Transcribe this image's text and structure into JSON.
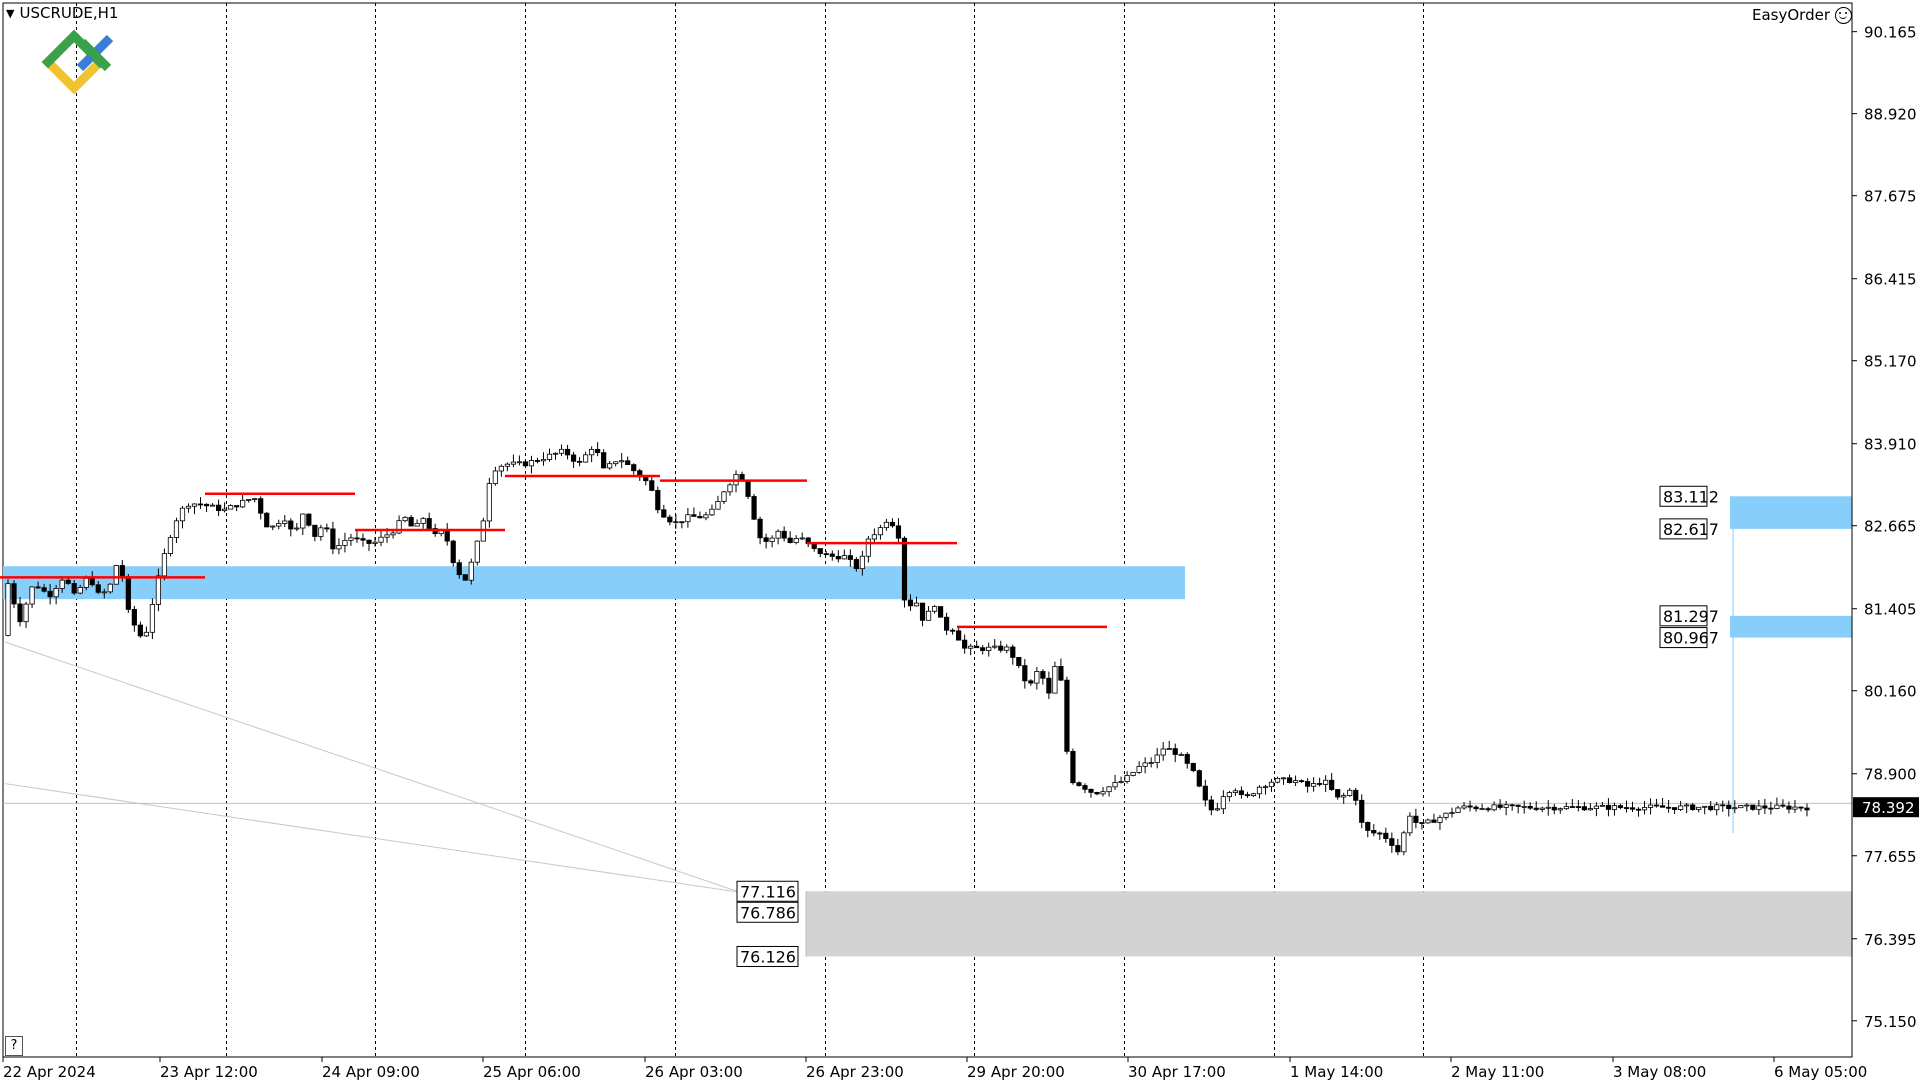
{
  "header": {
    "symbol_label": "USCRUDE,H1",
    "expert_label": "EasyOrder"
  },
  "help_label": "?",
  "colors": {
    "zone_blue": "#87cefa",
    "zone_gray": "#d3d3d3",
    "level_red": "#ff0000",
    "candle_bull": "#ffffff",
    "candle_bear": "#000000"
  },
  "chart_data": {
    "type": "candlestick",
    "symbol": "USCRUDE",
    "timeframe": "H1",
    "ylim": [
      74.6,
      90.6
    ],
    "y_ticks": [
      "90.165",
      "88.920",
      "87.675",
      "86.415",
      "85.170",
      "83.910",
      "82.665",
      "81.405",
      "80.160",
      "78.900",
      "77.655",
      "76.395",
      "75.150"
    ],
    "current_price": "78.392",
    "x_ticks": [
      "22 Apr 2024",
      "23 Apr 12:00",
      "24 Apr 09:00",
      "25 Apr 06:00",
      "26 Apr 03:00",
      "26 Apr 23:00",
      "29 Apr 20:00",
      "30 Apr 17:00",
      "1 May 14:00",
      "2 May 11:00",
      "3 May 08:00",
      "6 May 05:00"
    ],
    "session_separators": 10,
    "candle_count": 300,
    "ohlc_path": [
      [
        0,
        81.0
      ],
      [
        8,
        81.7
      ],
      [
        15,
        81.8
      ],
      [
        25,
        81.2
      ],
      [
        40,
        81.8
      ],
      [
        55,
        81.6
      ],
      [
        70,
        81.9
      ],
      [
        80,
        81.6
      ],
      [
        95,
        81.9
      ],
      [
        105,
        81.6
      ],
      [
        115,
        81.7
      ],
      [
        125,
        82.2
      ],
      [
        135,
        81.3
      ],
      [
        150,
        80.9
      ],
      [
        160,
        81.6
      ],
      [
        170,
        82.2
      ],
      [
        180,
        82.7
      ],
      [
        192,
        83.0
      ],
      [
        205,
        83.0
      ],
      [
        230,
        82.9
      ],
      [
        260,
        83.1
      ],
      [
        275,
        82.6
      ],
      [
        290,
        82.8
      ],
      [
        300,
        82.5
      ],
      [
        310,
        82.9
      ],
      [
        320,
        82.5
      ],
      [
        330,
        82.7
      ],
      [
        340,
        82.3
      ],
      [
        355,
        82.5
      ],
      [
        370,
        82.4
      ],
      [
        380,
        82.4
      ],
      [
        390,
        82.5
      ],
      [
        400,
        82.6
      ],
      [
        410,
        82.8
      ],
      [
        420,
        82.6
      ],
      [
        430,
        82.8
      ],
      [
        440,
        82.5
      ],
      [
        450,
        82.6
      ],
      [
        460,
        82.1
      ],
      [
        470,
        81.8
      ],
      [
        480,
        82.2
      ],
      [
        490,
        82.8
      ],
      [
        497,
        83.5
      ],
      [
        510,
        83.6
      ],
      [
        530,
        83.6
      ],
      [
        550,
        83.7
      ],
      [
        570,
        83.8
      ],
      [
        585,
        83.6
      ],
      [
        600,
        83.9
      ],
      [
        610,
        83.5
      ],
      [
        625,
        83.7
      ],
      [
        640,
        83.5
      ],
      [
        655,
        83.3
      ],
      [
        665,
        82.9
      ],
      [
        680,
        82.7
      ],
      [
        695,
        82.8
      ],
      [
        710,
        82.8
      ],
      [
        720,
        82.9
      ],
      [
        730,
        83.2
      ],
      [
        745,
        83.5
      ],
      [
        755,
        83.1
      ],
      [
        765,
        82.5
      ],
      [
        775,
        82.4
      ],
      [
        785,
        82.6
      ],
      [
        795,
        82.4
      ],
      [
        805,
        82.5
      ],
      [
        820,
        82.3
      ],
      [
        835,
        82.2
      ],
      [
        850,
        82.2
      ],
      [
        865,
        82.0
      ],
      [
        875,
        82.5
      ],
      [
        885,
        82.6
      ],
      [
        895,
        82.8
      ],
      [
        905,
        82.5
      ],
      [
        912,
        81.3
      ],
      [
        920,
        81.6
      ],
      [
        930,
        81.2
      ],
      [
        940,
        81.5
      ],
      [
        950,
        81.1
      ],
      [
        960,
        81.1
      ],
      [
        970,
        80.8
      ],
      [
        985,
        80.8
      ],
      [
        1000,
        80.8
      ],
      [
        1015,
        80.8
      ],
      [
        1025,
        80.5
      ],
      [
        1035,
        80.2
      ],
      [
        1045,
        80.5
      ],
      [
        1055,
        80.1
      ],
      [
        1065,
        80.8
      ],
      [
        1070,
        79.5
      ],
      [
        1078,
        78.8
      ],
      [
        1090,
        78.7
      ],
      [
        1100,
        78.6
      ],
      [
        1115,
        78.7
      ],
      [
        1130,
        78.8
      ],
      [
        1145,
        79.0
      ],
      [
        1160,
        79.1
      ],
      [
        1170,
        79.3
      ],
      [
        1185,
        79.2
      ],
      [
        1200,
        78.9
      ],
      [
        1210,
        78.5
      ],
      [
        1220,
        78.3
      ],
      [
        1230,
        78.6
      ],
      [
        1240,
        78.7
      ],
      [
        1250,
        78.5
      ],
      [
        1265,
        78.7
      ],
      [
        1280,
        78.8
      ],
      [
        1300,
        78.8
      ],
      [
        1315,
        78.7
      ],
      [
        1330,
        78.8
      ],
      [
        1345,
        78.5
      ],
      [
        1360,
        78.7
      ],
      [
        1365,
        78.2
      ],
      [
        1375,
        78.0
      ],
      [
        1385,
        78.0
      ],
      [
        1395,
        77.9
      ],
      [
        1405,
        77.7
      ],
      [
        1415,
        78.3
      ],
      [
        1425,
        78.1
      ],
      [
        1440,
        78.2
      ],
      [
        1455,
        78.3
      ],
      [
        1465,
        78.39
      ]
    ]
  },
  "annotations": {
    "zones": [
      {
        "kind": "support_zone",
        "low": 81.55,
        "high": 82.05,
        "from": "22 Apr 2024",
        "to": "30 Apr 17:00"
      },
      {
        "kind": "resistance_zone",
        "low": 82.617,
        "high": 83.112
      },
      {
        "kind": "resistance_zone",
        "low": 80.967,
        "high": 81.297
      },
      {
        "kind": "target_zone",
        "low": 76.126,
        "high": 77.116
      }
    ],
    "price_labels": [
      "83.112",
      "82.617",
      "81.297",
      "80.967",
      "77.116",
      "76.786",
      "76.126"
    ],
    "red_levels": [
      {
        "price": 81.88,
        "from_x": 0,
        "to_x": 205
      },
      {
        "price": 83.15,
        "from_x": 205,
        "to_x": 355
      },
      {
        "price": 82.6,
        "from_x": 355,
        "to_x": 505
      },
      {
        "price": 83.42,
        "from_x": 505,
        "to_x": 660
      },
      {
        "price": 83.35,
        "from_x": 660,
        "to_x": 807
      },
      {
        "price": 82.4,
        "from_x": 807,
        "to_x": 957
      },
      {
        "price": 81.13,
        "from_x": 957,
        "to_x": 1107
      }
    ]
  }
}
